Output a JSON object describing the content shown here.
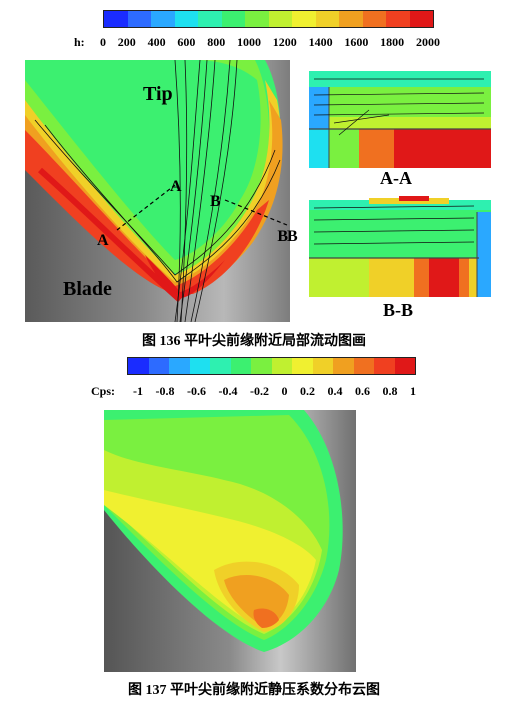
{
  "fig136": {
    "colorbar_label": "h:",
    "ticks": [
      "0",
      "200",
      "400",
      "600",
      "800",
      "1000",
      "1200",
      "1400",
      "1600",
      "1800",
      "2000"
    ],
    "colors": [
      "#1a2cff",
      "#2d6bff",
      "#2aa8ff",
      "#1ee0f0",
      "#2ef0b0",
      "#3cf070",
      "#7af040",
      "#c0f030",
      "#f0f030",
      "#f0d028",
      "#f0a020",
      "#f07020",
      "#f04020",
      "#e01818"
    ],
    "labels": {
      "tip": "Tip",
      "blade": "Blade",
      "a_left": "A",
      "a_right": "A",
      "b_left": "B",
      "b_right": "B",
      "section_a": "A-A",
      "section_b": "B-B"
    },
    "caption": "图 136 平叶尖前缘附近局部流动图画"
  },
  "fig137": {
    "colorbar_label": "Cps:",
    "ticks": [
      "-1",
      "-0.8",
      "-0.6",
      "-0.4",
      "-0.2",
      "0",
      "0.2",
      "0.4",
      "0.6",
      "0.8",
      "1"
    ],
    "colors": [
      "#1a2cff",
      "#2d6bff",
      "#2aa8ff",
      "#1ee0f0",
      "#2ef0b0",
      "#3cf070",
      "#7af040",
      "#c0f030",
      "#f0f030",
      "#f0d028",
      "#f0a020",
      "#f07020",
      "#f04020",
      "#e01818"
    ],
    "caption": "图 137 平叶尖前缘附近静压系数分布云图"
  }
}
